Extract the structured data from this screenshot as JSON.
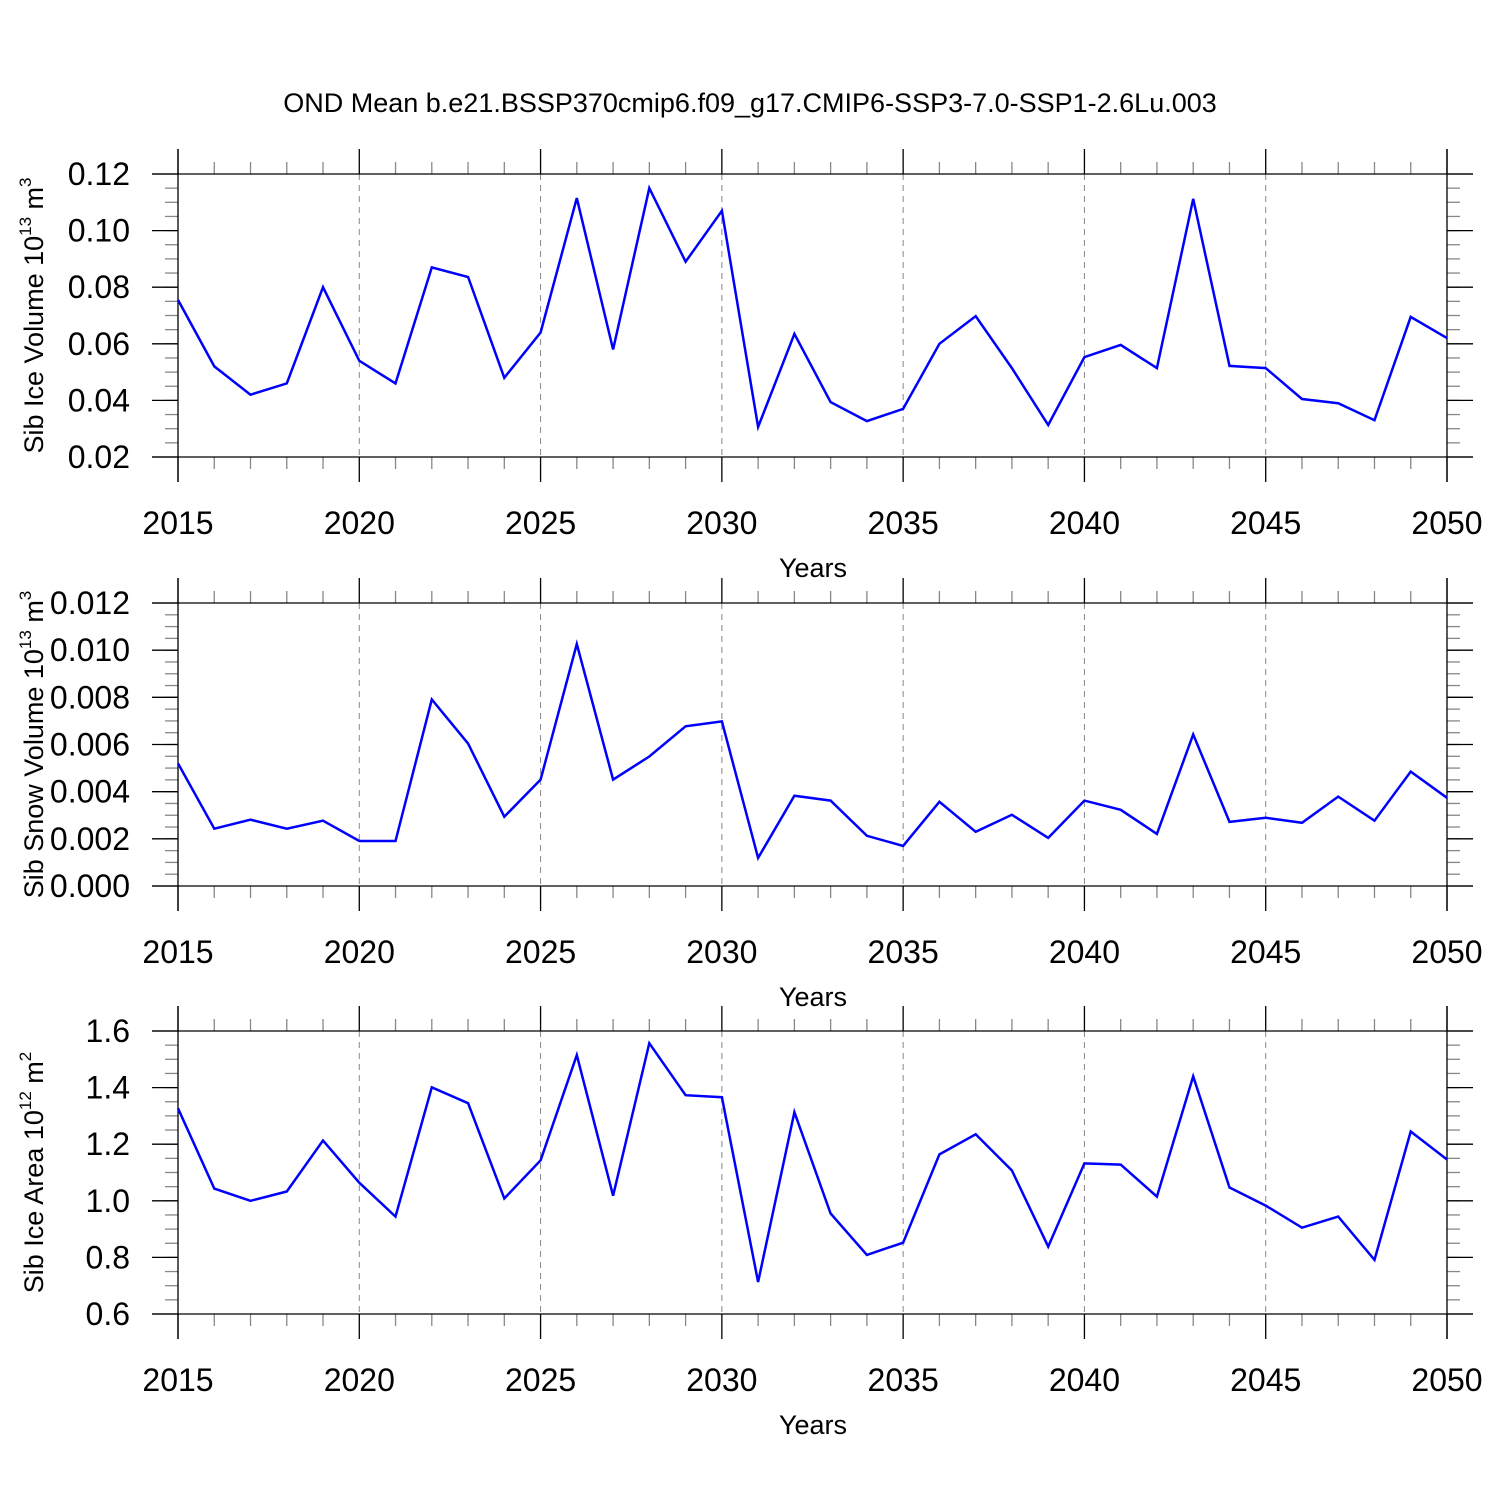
{
  "title": "OND Mean b.e21.BSSP370cmip6.f09_g17.CMIP6-SSP3-7.0-SSP1-2.6Lu.003",
  "colors": {
    "line": "#0000ff",
    "axis": "#000000",
    "grid": "#888888"
  },
  "chart_data": [
    {
      "type": "line",
      "ylabel": "Sib Ice Volume 10",
      "ylabel_sup": "13",
      "ylabel_unit": " m",
      "ylabel_unit_sup": "3",
      "xlabel": "Years",
      "xlim": [
        2015,
        2050
      ],
      "ylim": [
        0.02,
        0.12
      ],
      "yticks": [
        "0.02",
        "0.04",
        "0.06",
        "0.08",
        "0.10",
        "0.12"
      ],
      "ytick_values": [
        0.02,
        0.04,
        0.06,
        0.08,
        0.1,
        0.12
      ],
      "yminor_step": 0.005,
      "xticks": [
        "2015",
        "2020",
        "2025",
        "2030",
        "2035",
        "2040",
        "2045",
        "2050"
      ],
      "grid": "vertical dashed at major x ticks",
      "x": [
        2015,
        2016,
        2017,
        2018,
        2019,
        2020,
        2021,
        2022,
        2023,
        2024,
        2025,
        2026,
        2027,
        2028,
        2029,
        2030,
        2031,
        2032,
        2033,
        2034,
        2035,
        2036,
        2037,
        2038,
        2039,
        2040,
        2041,
        2042,
        2043,
        2044,
        2045,
        2046,
        2047,
        2048,
        2049,
        2050
      ],
      "values": [
        0.0755,
        0.052,
        0.042,
        0.046,
        0.08,
        0.054,
        0.046,
        0.087,
        0.0836,
        0.048,
        0.064,
        0.1115,
        0.058,
        0.115,
        0.089,
        0.107,
        0.0306,
        0.0635,
        0.0394,
        0.0327,
        0.037,
        0.06,
        0.0698,
        0.0514,
        0.0313,
        0.0553,
        0.0596,
        0.0514,
        0.1112,
        0.0522,
        0.0514,
        0.0405,
        0.039,
        0.033,
        0.0695,
        0.062
      ]
    },
    {
      "type": "line",
      "ylabel": "Sib Snow Volume 10",
      "ylabel_sup": "13",
      "ylabel_unit": " m",
      "ylabel_unit_sup": "3",
      "xlabel": "Years",
      "xlim": [
        2015,
        2050
      ],
      "ylim": [
        0.0,
        0.012
      ],
      "yticks": [
        "0.000",
        "0.002",
        "0.004",
        "0.006",
        "0.008",
        "0.010",
        "0.012"
      ],
      "ytick_values": [
        0,
        0.002,
        0.004,
        0.006,
        0.008,
        0.01,
        0.012
      ],
      "yminor_step": 0.0005,
      "xticks": [
        "2015",
        "2020",
        "2025",
        "2030",
        "2035",
        "2040",
        "2045",
        "2050"
      ],
      "grid": "vertical dashed at major x ticks",
      "x": [
        2015,
        2016,
        2017,
        2018,
        2019,
        2020,
        2021,
        2022,
        2023,
        2024,
        2025,
        2026,
        2027,
        2028,
        2029,
        2030,
        2031,
        2032,
        2033,
        2034,
        2035,
        2036,
        2037,
        2038,
        2039,
        2040,
        2041,
        2042,
        2043,
        2044,
        2045,
        2046,
        2047,
        2048,
        2049,
        2050
      ],
      "values": [
        0.0052,
        0.00243,
        0.00281,
        0.00243,
        0.00277,
        0.00191,
        0.00191,
        0.00791,
        0.00604,
        0.00294,
        0.00451,
        0.01026,
        0.00451,
        0.00549,
        0.00677,
        0.00698,
        0.00119,
        0.00383,
        0.00362,
        0.00213,
        0.0017,
        0.00357,
        0.0023,
        0.00302,
        0.00204,
        0.00362,
        0.00323,
        0.00221,
        0.00643,
        0.00272,
        0.00289,
        0.00268,
        0.00379,
        0.00277,
        0.00485,
        0.00374
      ]
    },
    {
      "type": "line",
      "ylabel": "Sib Ice Area 10",
      "ylabel_sup": "12",
      "ylabel_unit": " m",
      "ylabel_unit_sup": "2",
      "xlabel": "Years",
      "xlim": [
        2015,
        2050
      ],
      "ylim": [
        0.6,
        1.6
      ],
      "yticks": [
        "0.6",
        "0.8",
        "1.0",
        "1.2",
        "1.4",
        "1.6"
      ],
      "ytick_values": [
        0.6,
        0.8,
        1.0,
        1.2,
        1.4,
        1.6
      ],
      "yminor_step": 0.05,
      "xticks": [
        "2015",
        "2020",
        "2025",
        "2030",
        "2035",
        "2040",
        "2045",
        "2050"
      ],
      "grid": "vertical dashed at major x ticks",
      "x": [
        2015,
        2016,
        2017,
        2018,
        2019,
        2020,
        2021,
        2022,
        2023,
        2024,
        2025,
        2026,
        2027,
        2028,
        2029,
        2030,
        2031,
        2032,
        2033,
        2034,
        2035,
        2036,
        2037,
        2038,
        2039,
        2040,
        2041,
        2042,
        2043,
        2044,
        2045,
        2046,
        2047,
        2048,
        2049,
        2050
      ],
      "values": [
        1.327,
        1.043,
        1.0,
        1.033,
        1.213,
        1.064,
        0.944,
        1.401,
        1.345,
        1.008,
        1.143,
        1.515,
        1.018,
        1.557,
        1.373,
        1.366,
        0.713,
        1.313,
        0.955,
        0.809,
        0.852,
        1.164,
        1.235,
        1.107,
        0.838,
        1.132,
        1.128,
        1.015,
        1.44,
        1.047,
        0.983,
        0.905,
        0.944,
        0.791,
        1.245,
        1.146
      ]
    }
  ]
}
